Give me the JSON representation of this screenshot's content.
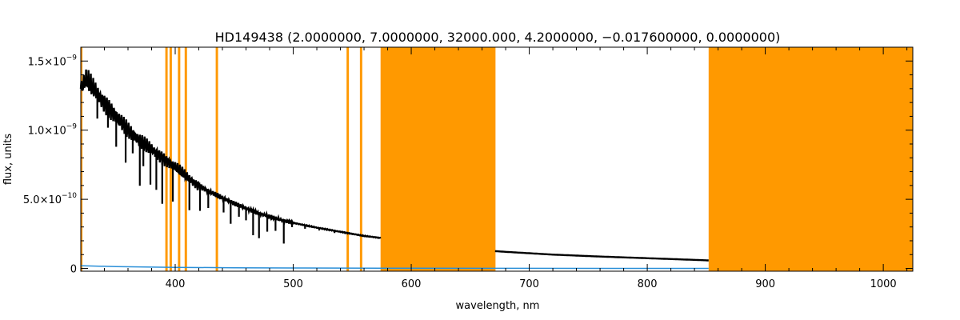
{
  "chart_data": {
    "type": "line",
    "title": "HD149438    (2.0000000, 7.0000000, 32000.000, 4.2000000, −0.017600000, 0.0000000)",
    "xlabel": "wavelength, nm",
    "ylabel": "flux, units",
    "xlim": [
      320,
      1025
    ],
    "ylim": [
      -2e-11,
      1.6e-09
    ],
    "x_ticks": [
      400,
      500,
      600,
      700,
      800,
      900,
      1000
    ],
    "x_tick_labels": [
      "400",
      "500",
      "600",
      "700",
      "800",
      "900",
      "1000"
    ],
    "y_ticks": [
      0,
      5e-10,
      1e-09,
      1.5e-09
    ],
    "y_tick_labels": [
      {
        "mantissa": "0",
        "exponent": ""
      },
      {
        "mantissa": "5.0×10",
        "exponent": "−10"
      },
      {
        "mantissa": "1.0×10",
        "exponent": "−9"
      },
      {
        "mantissa": "1.5×10",
        "exponent": "−9"
      }
    ],
    "grid": false,
    "colors": {
      "flux": "#000000",
      "error": "#2a8fd8",
      "mask": "#ff9900",
      "axes": "#000000"
    },
    "masked_regions": [
      [
        319.8,
        321.4
      ],
      [
        391.6,
        393.6
      ],
      [
        395.2,
        397.2
      ],
      [
        402.3,
        404.3
      ],
      [
        408.0,
        410.0
      ],
      [
        434.3,
        436.3
      ],
      [
        545.2,
        547.2
      ],
      [
        556.5,
        558.5
      ],
      [
        574.0,
        671.4
      ],
      [
        852.0,
        1025.0
      ]
    ],
    "series": [
      {
        "x": [
          320,
          325,
          330,
          335,
          340,
          350,
          360,
          370,
          380,
          390,
          400,
          410,
          420,
          430,
          440,
          450,
          460,
          470,
          480,
          490,
          500,
          510,
          520,
          530,
          540,
          550,
          560,
          570,
          574,
          671,
          680,
          700,
          720,
          740,
          760,
          780,
          800,
          820,
          840,
          852
        ],
        "y": [
          1.3e-09,
          1.36e-09,
          1.3e-09,
          1.25e-09,
          1.2e-09,
          1.1e-09,
          1e-09,
          9.2e-10,
          8.6e-10,
          8e-10,
          7.3e-10,
          6.6e-10,
          6e-10,
          5.5e-10,
          5.1e-10,
          4.7e-10,
          4.35e-10,
          4e-10,
          3.75e-10,
          3.5e-10,
          3.3e-10,
          3.12e-10,
          2.95e-10,
          2.8e-10,
          2.65e-10,
          2.5e-10,
          2.35e-10,
          2.25e-10,
          2.2e-10,
          1.25e-10,
          1.2e-10,
          1.1e-10,
          1e-10,
          9.3e-11,
          8.6e-11,
          8e-11,
          7.4e-11,
          6.8e-11,
          6.2e-11,
          5.8e-11
        ]
      },
      {
        "x": [
          320,
          350,
          400,
          450,
          500,
          574,
          671,
          852
        ],
        "y": [
          2e-11,
          1.3e-11,
          8e-12,
          5e-12,
          3e-12,
          2e-12,
          1e-12,
          5e-13
        ]
      }
    ],
    "absorption_lines": [
      {
        "x": 334,
        "depth": 0.14
      },
      {
        "x": 343,
        "depth": 0.13
      },
      {
        "x": 350,
        "depth": 0.2
      },
      {
        "x": 358,
        "depth": 0.25
      },
      {
        "x": 364,
        "depth": 0.14
      },
      {
        "x": 370,
        "depth": 0.35
      },
      {
        "x": 373,
        "depth": 0.18
      },
      {
        "x": 379,
        "depth": 0.3
      },
      {
        "x": 384,
        "depth": 0.32
      },
      {
        "x": 389,
        "depth": 0.42
      },
      {
        "x": 398,
        "depth": 0.35
      },
      {
        "x": 412,
        "depth": 0.35
      },
      {
        "x": 421,
        "depth": 0.3
      },
      {
        "x": 428,
        "depth": 0.22
      },
      {
        "x": 441,
        "depth": 0.2
      },
      {
        "x": 447,
        "depth": 0.33
      },
      {
        "x": 454,
        "depth": 0.18
      },
      {
        "x": 460,
        "depth": 0.2
      },
      {
        "x": 466,
        "depth": 0.42
      },
      {
        "x": 471,
        "depth": 0.45
      },
      {
        "x": 478,
        "depth": 0.3
      },
      {
        "x": 485,
        "depth": 0.25
      },
      {
        "x": 492,
        "depth": 0.48
      },
      {
        "x": 499,
        "depth": 0.1
      },
      {
        "x": 510,
        "depth": 0.08
      },
      {
        "x": 522,
        "depth": 0.06
      },
      {
        "x": 535,
        "depth": 0.06
      }
    ]
  }
}
